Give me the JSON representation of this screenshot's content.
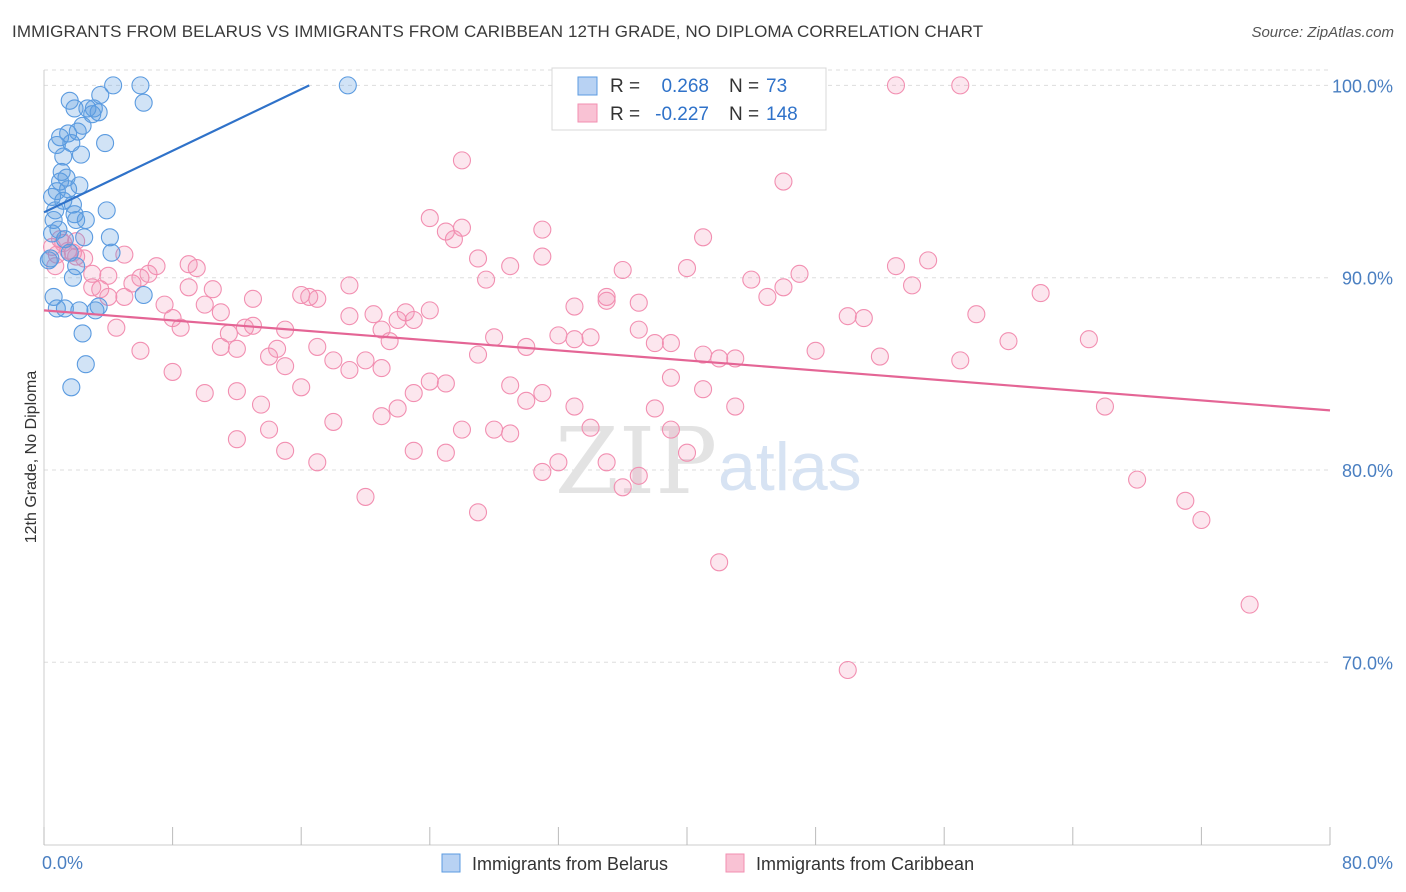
{
  "title": "IMMIGRANTS FROM BELARUS VS IMMIGRANTS FROM CARIBBEAN 12TH GRADE, NO DIPLOMA CORRELATION CHART",
  "source": "Source: ZipAtlas.com",
  "watermark": {
    "zip": "ZIP",
    "atlas": "atlas"
  },
  "colors": {
    "belarus": "#5b9be0",
    "belarus_line": "#2f72c9",
    "caribbean": "#f28fb1",
    "caribbean_line": "#e46595",
    "axis_text": "#4a7fc1",
    "grid": "#dddddd"
  },
  "legend_box": {
    "rows": [
      {
        "r_label": "R =",
        "r_value": "0.268",
        "n_label": "N =",
        "n_value": "73"
      },
      {
        "r_label": "R =",
        "r_value": "-0.227",
        "n_label": "N =",
        "n_value": "148"
      }
    ]
  },
  "chart_data": {
    "type": "scatter",
    "xlabel": "",
    "ylabel": "12th Grade, No Diploma",
    "xlim": [
      0,
      80
    ],
    "ylim": [
      60.5,
      100.8
    ],
    "x_tick_labels": [
      "0.0%",
      "80.0%"
    ],
    "y_ticks": [
      70,
      80,
      90,
      100
    ],
    "y_tick_labels": [
      "70.0%",
      "80.0%",
      "90.0%",
      "100.0%"
    ],
    "grid": true,
    "legend": "bottom",
    "series": [
      {
        "name": "Immigrants from Belarus",
        "r": 0.268,
        "n": 73,
        "trend": {
          "x": [
            0,
            16.5
          ],
          "y": [
            93.4,
            100
          ]
        },
        "points": [
          [
            0.6,
            93.0
          ],
          [
            0.4,
            91.0
          ],
          [
            0.8,
            94.5
          ],
          [
            1.0,
            95.0
          ],
          [
            0.7,
            93.5
          ],
          [
            1.2,
            94.0
          ],
          [
            1.5,
            94.6
          ],
          [
            1.8,
            93.8
          ],
          [
            0.9,
            92.5
          ],
          [
            1.3,
            92.0
          ],
          [
            1.6,
            91.3
          ],
          [
            2.0,
            93.0
          ],
          [
            2.2,
            94.8
          ],
          [
            2.5,
            92.1
          ],
          [
            1.1,
            95.5
          ],
          [
            1.4,
            95.2
          ],
          [
            0.5,
            94.2
          ],
          [
            0.8,
            96.9
          ],
          [
            1.0,
            97.3
          ],
          [
            1.5,
            97.5
          ],
          [
            1.7,
            97.0
          ],
          [
            2.1,
            97.6
          ],
          [
            2.4,
            97.9
          ],
          [
            2.7,
            98.8
          ],
          [
            3.0,
            98.5
          ],
          [
            1.6,
            99.2
          ],
          [
            1.9,
            98.8
          ],
          [
            3.5,
            99.5
          ],
          [
            4.3,
            100.0
          ],
          [
            6.0,
            100.0
          ],
          [
            6.2,
            99.1
          ],
          [
            1.2,
            96.3
          ],
          [
            2.3,
            96.4
          ],
          [
            3.8,
            97.0
          ],
          [
            3.9,
            93.5
          ],
          [
            4.1,
            92.1
          ],
          [
            4.2,
            91.3
          ],
          [
            2.0,
            90.6
          ],
          [
            1.8,
            90.0
          ],
          [
            0.6,
            89.0
          ],
          [
            0.8,
            88.4
          ],
          [
            1.3,
            88.4
          ],
          [
            2.2,
            88.3
          ],
          [
            3.2,
            88.3
          ],
          [
            3.4,
            88.5
          ],
          [
            2.4,
            87.1
          ],
          [
            2.6,
            85.5
          ],
          [
            1.7,
            84.3
          ],
          [
            6.2,
            89.1
          ],
          [
            0.3,
            90.9
          ],
          [
            0.5,
            92.3
          ],
          [
            1.9,
            93.3
          ],
          [
            2.6,
            93.0
          ],
          [
            3.1,
            98.8
          ],
          [
            3.4,
            98.6
          ],
          [
            18.9,
            100.0
          ]
        ]
      },
      {
        "name": "Immigrants from Caribbean",
        "r": -0.227,
        "n": 148,
        "trend": {
          "x": [
            0,
            80
          ],
          "y": [
            88.3,
            83.1
          ]
        },
        "points": [
          [
            0.5,
            91.6
          ],
          [
            0.8,
            91.2
          ],
          [
            1.2,
            91.8
          ],
          [
            1.5,
            91.4
          ],
          [
            2.0,
            91.1
          ],
          [
            0.7,
            90.6
          ],
          [
            1.8,
            91.3
          ],
          [
            2.5,
            91.0
          ],
          [
            3.0,
            90.2
          ],
          [
            3.5,
            89.4
          ],
          [
            4.0,
            89.0
          ],
          [
            4.5,
            87.4
          ],
          [
            5.0,
            91.2
          ],
          [
            5.5,
            89.7
          ],
          [
            6.0,
            90.0
          ],
          [
            6.5,
            90.2
          ],
          [
            7.0,
            90.6
          ],
          [
            7.5,
            88.6
          ],
          [
            8.0,
            87.9
          ],
          [
            8.5,
            87.4
          ],
          [
            9.0,
            89.5
          ],
          [
            9.5,
            90.5
          ],
          [
            10.0,
            88.6
          ],
          [
            10.5,
            89.4
          ],
          [
            11.0,
            88.2
          ],
          [
            11.5,
            87.1
          ],
          [
            12.0,
            86.3
          ],
          [
            12.5,
            87.4
          ],
          [
            13.0,
            88.9
          ],
          [
            14.0,
            85.9
          ],
          [
            14.5,
            86.3
          ],
          [
            15.0,
            87.3
          ],
          [
            16.0,
            89.1
          ],
          [
            16.5,
            89.0
          ],
          [
            17.0,
            86.4
          ],
          [
            18.0,
            85.7
          ],
          [
            19.0,
            88.0
          ],
          [
            20.0,
            85.7
          ],
          [
            20.5,
            88.1
          ],
          [
            21.0,
            87.3
          ],
          [
            21.5,
            86.7
          ],
          [
            22.0,
            87.8
          ],
          [
            22.5,
            88.2
          ],
          [
            23.0,
            84.0
          ],
          [
            24.0,
            88.3
          ],
          [
            25.0,
            92.4
          ],
          [
            25.5,
            92.0
          ],
          [
            26.0,
            92.6
          ],
          [
            27.0,
            91.0
          ],
          [
            27.5,
            89.9
          ],
          [
            28.0,
            86.9
          ],
          [
            29.0,
            90.6
          ],
          [
            30.0,
            86.4
          ],
          [
            31.0,
            91.1
          ],
          [
            32.0,
            87.0
          ],
          [
            33.0,
            88.5
          ],
          [
            34.0,
            86.9
          ],
          [
            35.0,
            89.0
          ],
          [
            36.0,
            90.4
          ],
          [
            37.0,
            88.7
          ],
          [
            38.0,
            86.6
          ],
          [
            39.0,
            86.6
          ],
          [
            40.0,
            90.5
          ],
          [
            41.0,
            92.1
          ],
          [
            42.0,
            85.8
          ],
          [
            43.0,
            85.8
          ],
          [
            44.0,
            89.9
          ],
          [
            45.0,
            89.0
          ],
          [
            46.0,
            89.5
          ],
          [
            47.0,
            90.2
          ],
          [
            48.0,
            86.2
          ],
          [
            50.0,
            88.0
          ],
          [
            51.0,
            87.9
          ],
          [
            52.0,
            85.9
          ],
          [
            53.0,
            90.6
          ],
          [
            54.0,
            89.6
          ],
          [
            55.0,
            90.9
          ],
          [
            57.0,
            85.7
          ],
          [
            58.0,
            88.1
          ],
          [
            60.0,
            86.7
          ],
          [
            62.0,
            89.2
          ],
          [
            65.0,
            86.8
          ],
          [
            10.0,
            84.0
          ],
          [
            12.0,
            81.6
          ],
          [
            13.5,
            83.4
          ],
          [
            14.0,
            82.1
          ],
          [
            15.0,
            81.0
          ],
          [
            16.0,
            84.3
          ],
          [
            17.0,
            80.4
          ],
          [
            18.0,
            82.5
          ],
          [
            19.0,
            85.2
          ],
          [
            20.0,
            78.6
          ],
          [
            21.0,
            82.8
          ],
          [
            22.0,
            83.2
          ],
          [
            23.0,
            81.0
          ],
          [
            24.0,
            84.6
          ],
          [
            25.0,
            80.9
          ],
          [
            26.0,
            82.1
          ],
          [
            27.0,
            77.8
          ],
          [
            28.0,
            82.1
          ],
          [
            29.0,
            84.4
          ],
          [
            30.0,
            83.6
          ],
          [
            31.0,
            79.9
          ],
          [
            32.0,
            80.4
          ],
          [
            33.0,
            83.3
          ],
          [
            34.0,
            82.2
          ],
          [
            35.0,
            80.4
          ],
          [
            36.0,
            79.1
          ],
          [
            37.0,
            79.7
          ],
          [
            38.0,
            83.2
          ],
          [
            39.0,
            82.1
          ],
          [
            40.0,
            80.9
          ],
          [
            41.0,
            84.2
          ],
          [
            42.0,
            75.2
          ],
          [
            46.0,
            95.0
          ],
          [
            50.0,
            69.6
          ],
          [
            68.0,
            79.5
          ],
          [
            71.0,
            78.4
          ],
          [
            72.0,
            77.4
          ],
          [
            75.0,
            73.0
          ],
          [
            26.0,
            96.1
          ],
          [
            24.0,
            93.1
          ],
          [
            31.0,
            92.5
          ],
          [
            53.0,
            100.0
          ],
          [
            57.0,
            100.0
          ],
          [
            66.0,
            83.3
          ],
          [
            12.0,
            84.1
          ],
          [
            8.0,
            85.1
          ],
          [
            6.0,
            86.2
          ],
          [
            5.0,
            89.0
          ],
          [
            4.0,
            90.1
          ],
          [
            3.0,
            89.5
          ],
          [
            2.0,
            91.9
          ],
          [
            1.0,
            92.0
          ],
          [
            9.0,
            90.7
          ],
          [
            11.0,
            86.4
          ],
          [
            13.0,
            87.5
          ],
          [
            15.0,
            85.4
          ],
          [
            17.0,
            88.9
          ],
          [
            19.0,
            89.6
          ],
          [
            21.0,
            85.3
          ],
          [
            23.0,
            87.8
          ],
          [
            25.0,
            84.5
          ],
          [
            27.0,
            86.0
          ],
          [
            29.0,
            81.9
          ],
          [
            31.0,
            84.0
          ],
          [
            33.0,
            86.8
          ],
          [
            35.0,
            88.8
          ],
          [
            37.0,
            87.3
          ],
          [
            39.0,
            84.8
          ],
          [
            41.0,
            86.0
          ],
          [
            43.0,
            83.3
          ]
        ]
      }
    ]
  }
}
